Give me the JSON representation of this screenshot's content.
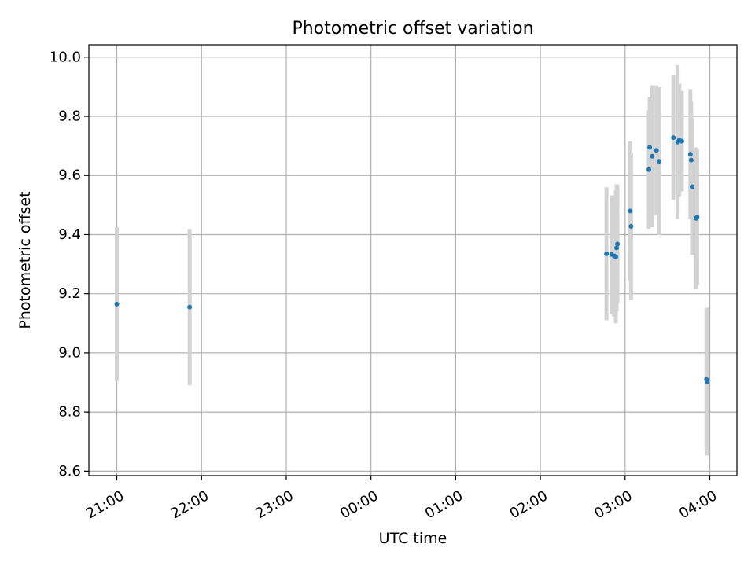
{
  "chart_data": {
    "type": "scatter",
    "title": "Photometric offset variation",
    "xlabel": "UTC time",
    "ylabel": "Photometric offset",
    "grid": true,
    "legend": "none",
    "x_unit": "hours since 21:00 UTC",
    "xlim": [
      -0.33,
      7.32
    ],
    "ylim": [
      8.585,
      10.042
    ],
    "x_ticks": [
      {
        "value": 0,
        "label": "21:00"
      },
      {
        "value": 1,
        "label": "22:00"
      },
      {
        "value": 2,
        "label": "23:00"
      },
      {
        "value": 3,
        "label": "00:00"
      },
      {
        "value": 4,
        "label": "01:00"
      },
      {
        "value": 5,
        "label": "02:00"
      },
      {
        "value": 6,
        "label": "03:00"
      },
      {
        "value": 7,
        "label": "04:00"
      }
    ],
    "y_ticks": [
      {
        "value": 8.6,
        "label": "8.6"
      },
      {
        "value": 8.8,
        "label": "8.8"
      },
      {
        "value": 9.0,
        "label": "9.0"
      },
      {
        "value": 9.2,
        "label": "9.2"
      },
      {
        "value": 9.4,
        "label": "9.4"
      },
      {
        "value": 9.6,
        "label": "9.6"
      },
      {
        "value": 9.8,
        "label": "9.8"
      },
      {
        "value": 10.0,
        "label": "10.0"
      }
    ],
    "colors": {
      "point": "#1f77b4",
      "errorbar": "#d3d3d3",
      "grid": "#b0b0b0"
    },
    "points": [
      {
        "x": 0.0,
        "y": 9.165,
        "err": 0.26
      },
      {
        "x": 0.86,
        "y": 9.155,
        "err": 0.265
      },
      {
        "x": 5.78,
        "y": 9.335,
        "err": 0.225
      },
      {
        "x": 5.84,
        "y": 9.333,
        "err": 0.2
      },
      {
        "x": 5.87,
        "y": 9.328,
        "err": 0.205
      },
      {
        "x": 5.89,
        "y": 9.325,
        "err": 0.225
      },
      {
        "x": 5.9,
        "y": 9.355,
        "err": 0.215
      },
      {
        "x": 5.91,
        "y": 9.368,
        "err": 0.2
      },
      {
        "x": 6.06,
        "y": 9.48,
        "err": 0.235
      },
      {
        "x": 6.07,
        "y": 9.428,
        "err": 0.25
      },
      {
        "x": 6.28,
        "y": 9.62,
        "err": 0.2
      },
      {
        "x": 6.29,
        "y": 9.695,
        "err": 0.17
      },
      {
        "x": 6.32,
        "y": 9.665,
        "err": 0.24
      },
      {
        "x": 6.37,
        "y": 9.685,
        "err": 0.22
      },
      {
        "x": 6.4,
        "y": 9.648,
        "err": 0.25
      },
      {
        "x": 6.57,
        "y": 9.728,
        "err": 0.21
      },
      {
        "x": 6.62,
        "y": 9.713,
        "err": 0.26
      },
      {
        "x": 6.64,
        "y": 9.72,
        "err": 0.19
      },
      {
        "x": 6.67,
        "y": 9.716,
        "err": 0.17
      },
      {
        "x": 6.77,
        "y": 9.672,
        "err": 0.22
      },
      {
        "x": 6.78,
        "y": 9.652,
        "err": 0.2
      },
      {
        "x": 6.79,
        "y": 9.562,
        "err": 0.23
      },
      {
        "x": 6.84,
        "y": 9.455,
        "err": 0.24
      },
      {
        "x": 6.85,
        "y": 9.46,
        "err": 0.23
      },
      {
        "x": 6.96,
        "y": 8.91,
        "err": 0.24
      },
      {
        "x": 6.97,
        "y": 8.903,
        "err": 0.25
      }
    ]
  }
}
